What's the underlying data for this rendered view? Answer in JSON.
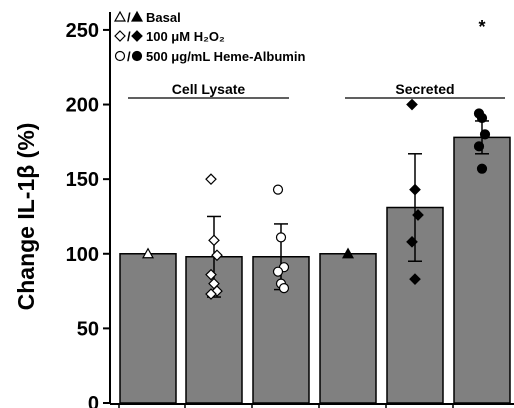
{
  "chart_data": {
    "type": "bar",
    "ylabel": "Change IL-1β (%)",
    "ylim": [
      0,
      260
    ],
    "yticks": [
      0,
      50,
      100,
      150,
      200,
      250
    ],
    "grid": false,
    "legend_position": "top-left",
    "legend": [
      {
        "label": "Basal",
        "markers": [
          "triangle-open",
          "triangle-filled"
        ]
      },
      {
        "label": "100 μM H₂O₂",
        "markers": [
          "diamond-open",
          "diamond-filled"
        ]
      },
      {
        "label": "500 μg/mL Heme-Albumin",
        "markers": [
          "circle-open",
          "circle-filled"
        ]
      }
    ],
    "groups": [
      {
        "label": "Cell Lysate"
      },
      {
        "label": "Secreted"
      }
    ],
    "bars": [
      {
        "group": 0,
        "treatment": "Basal",
        "marker": "triangle",
        "filled": false,
        "value": 100,
        "error": 0,
        "points": [
          100
        ]
      },
      {
        "group": 0,
        "treatment": "100 μM H₂O₂",
        "marker": "diamond",
        "filled": false,
        "value": 98,
        "error": 27,
        "points": [
          150,
          109,
          99,
          86,
          80,
          75,
          73
        ]
      },
      {
        "group": 0,
        "treatment": "500 μg/mL Heme-Albumin",
        "marker": "circle",
        "filled": false,
        "value": 98,
        "error": 22,
        "points": [
          143,
          111,
          91,
          88,
          80,
          77
        ]
      },
      {
        "group": 1,
        "treatment": "Basal",
        "marker": "triangle",
        "filled": true,
        "value": 100,
        "error": 0,
        "points": [
          100
        ]
      },
      {
        "group": 1,
        "treatment": "100 μM H₂O₂",
        "marker": "diamond",
        "filled": true,
        "value": 131,
        "error": 36,
        "points": [
          200,
          143,
          126,
          108,
          83
        ]
      },
      {
        "group": 1,
        "treatment": "500 μg/mL Heme-Albumin",
        "marker": "circle",
        "filled": true,
        "value": 178,
        "error": 11,
        "points": [
          194,
          191,
          180,
          172,
          157
        ]
      }
    ],
    "annotation": "*"
  }
}
